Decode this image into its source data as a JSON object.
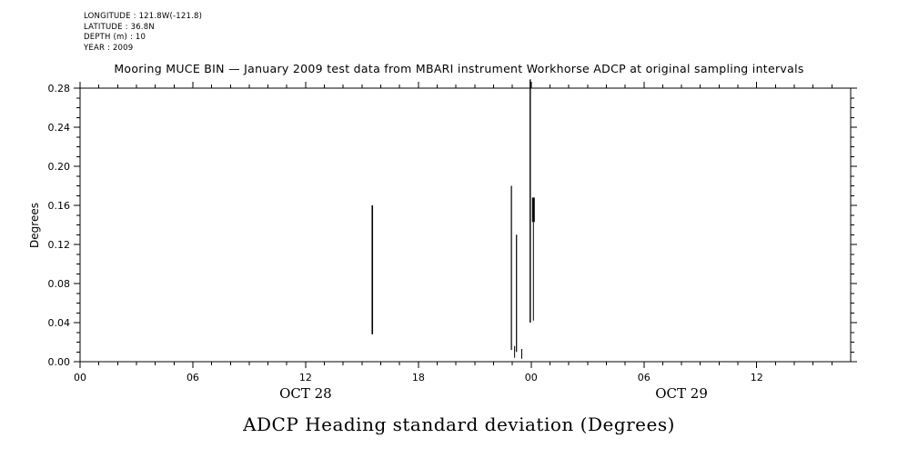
{
  "page": {
    "background": "#ffffff",
    "ink": "#000000"
  },
  "meta": {
    "longitude": "LONGITUDE : 121.8W(-121.8)",
    "latitude": "LATITUDE : 36.8N",
    "depth": "DEPTH (m) : 10",
    "year": "YEAR : 2009"
  },
  "caption": "ADCP Heading standard deviation (Degrees)",
  "chart_data": {
    "type": "line",
    "title": "Mooring MUCE BIN — January 2009 test data from MBARI instrument Workhorse ADCP at original sampling intervals",
    "xlabel": "",
    "ylabel": "Degrees",
    "ylim": [
      0,
      0.28
    ],
    "y_major_ticks": [
      0,
      0.04,
      0.08,
      0.12,
      0.16,
      0.2,
      0.24,
      0.28
    ],
    "y_minor_step": 0.01,
    "x_range_hours": [
      0,
      41
    ],
    "x_major_ticks": [
      {
        "hour": 0,
        "label": "00"
      },
      {
        "hour": 6,
        "label": "06"
      },
      {
        "hour": 12,
        "label": "12"
      },
      {
        "hour": 18,
        "label": "18"
      },
      {
        "hour": 24,
        "label": "00"
      },
      {
        "hour": 30,
        "label": "06"
      },
      {
        "hour": 36,
        "label": "12"
      }
    ],
    "x_minor_step_hours": 1,
    "date_labels": [
      {
        "label": "OCT 28",
        "hour": 12
      },
      {
        "label": "OCT 29",
        "hour": 32
      }
    ],
    "grid": false,
    "line_color": "#000000",
    "series_name": "ADCP heading standard deviation",
    "segments": [
      {
        "hour": 15.55,
        "y_min": 0.028,
        "y_max": 0.16,
        "width": 1.6
      },
      {
        "hour": 22.95,
        "y_min": 0.012,
        "y_max": 0.18,
        "width": 1.2
      },
      {
        "hour": 23.22,
        "y_min": 0.01,
        "y_max": 0.13,
        "width": 1.2
      },
      {
        "hour": 23.12,
        "y_min": 0.004,
        "y_max": 0.016,
        "width": 1.0
      },
      {
        "hour": 23.5,
        "y_min": 0.003,
        "y_max": 0.013,
        "width": 1.0
      },
      {
        "hour": 23.95,
        "y_min": 0.04,
        "y_max": 0.289,
        "width": 1.4
      },
      {
        "hour": 24.12,
        "y_min": 0.042,
        "y_max": 0.143,
        "width": 1.0
      },
      {
        "hour": 24.12,
        "y_min": 0.143,
        "y_max": 0.168,
        "width": 3.0
      }
    ]
  }
}
